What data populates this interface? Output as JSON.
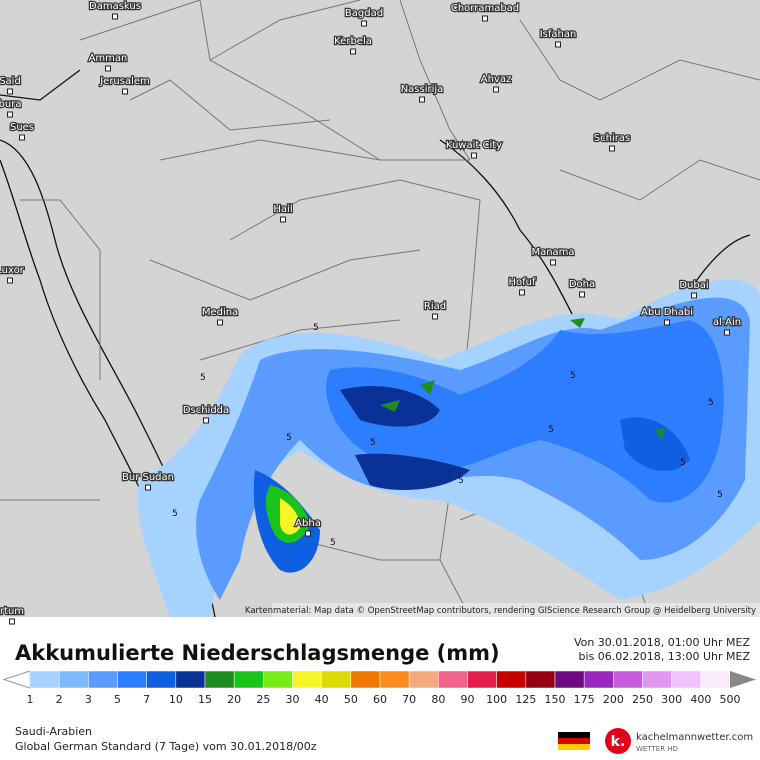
{
  "map": {
    "cities": [
      "Damaskus",
      "Bagdad",
      "Chorramabad",
      "Isfahan",
      "Amman",
      "Jerusalem",
      "Kerbela",
      "Ahvaz",
      "Said",
      "bura",
      "Sues",
      "Nassirija",
      "Schiras",
      "Kuwait City",
      "Hail",
      "Manama",
      "Hofuf",
      "Doha",
      "Dubai",
      "Luxor",
      "Medina",
      "Riad",
      "Abu Dhabi",
      "al-Ain",
      "Dschidda",
      "Bur Sudan",
      "Abha",
      "rtum"
    ],
    "contour_labels": [
      "5",
      "5",
      "5",
      "5",
      "5",
      "5",
      "5",
      "5",
      "5",
      "5",
      "5",
      "5"
    ],
    "attribution": "Kartenmaterial: Map data © OpenStreetMap contributors, rendering GIScience Research Group @ Heidelberg University"
  },
  "legend": {
    "title": "Akkumulierte Niederschlagsmenge (mm)",
    "period": [
      "Von 30.01.2018, 01:00 Uhr MEZ",
      "bis 06.02.2018, 13:00 Uhr MEZ"
    ],
    "ticks": [
      1,
      2,
      3,
      5,
      7,
      10,
      15,
      20,
      25,
      30,
      40,
      50,
      60,
      70,
      80,
      90,
      100,
      125,
      150,
      175,
      200,
      250,
      300,
      400,
      500
    ],
    "colors": [
      "#a5d2ff",
      "#7db9ff",
      "#5a9bff",
      "#2d7dff",
      "#0f5fe1",
      "#0a3296",
      "#1e8c1e",
      "#19c319",
      "#78eb19",
      "#f5f528",
      "#dcdc00",
      "#f07800",
      "#fa8c1e",
      "#f5aa7d",
      "#f0648c",
      "#e61e4b",
      "#c80000",
      "#960014",
      "#6e0a82",
      "#9b28be",
      "#c85adc",
      "#e196f0",
      "#f0c3fa",
      "#faebfa"
    ]
  },
  "footer": {
    "region": "Saudi-Arabien",
    "model": "Global German Standard (7 Tage) vom 30.01.2018/00z",
    "brand": "kachelmannwetter.com",
    "brand_sub": "WETTER HD"
  }
}
